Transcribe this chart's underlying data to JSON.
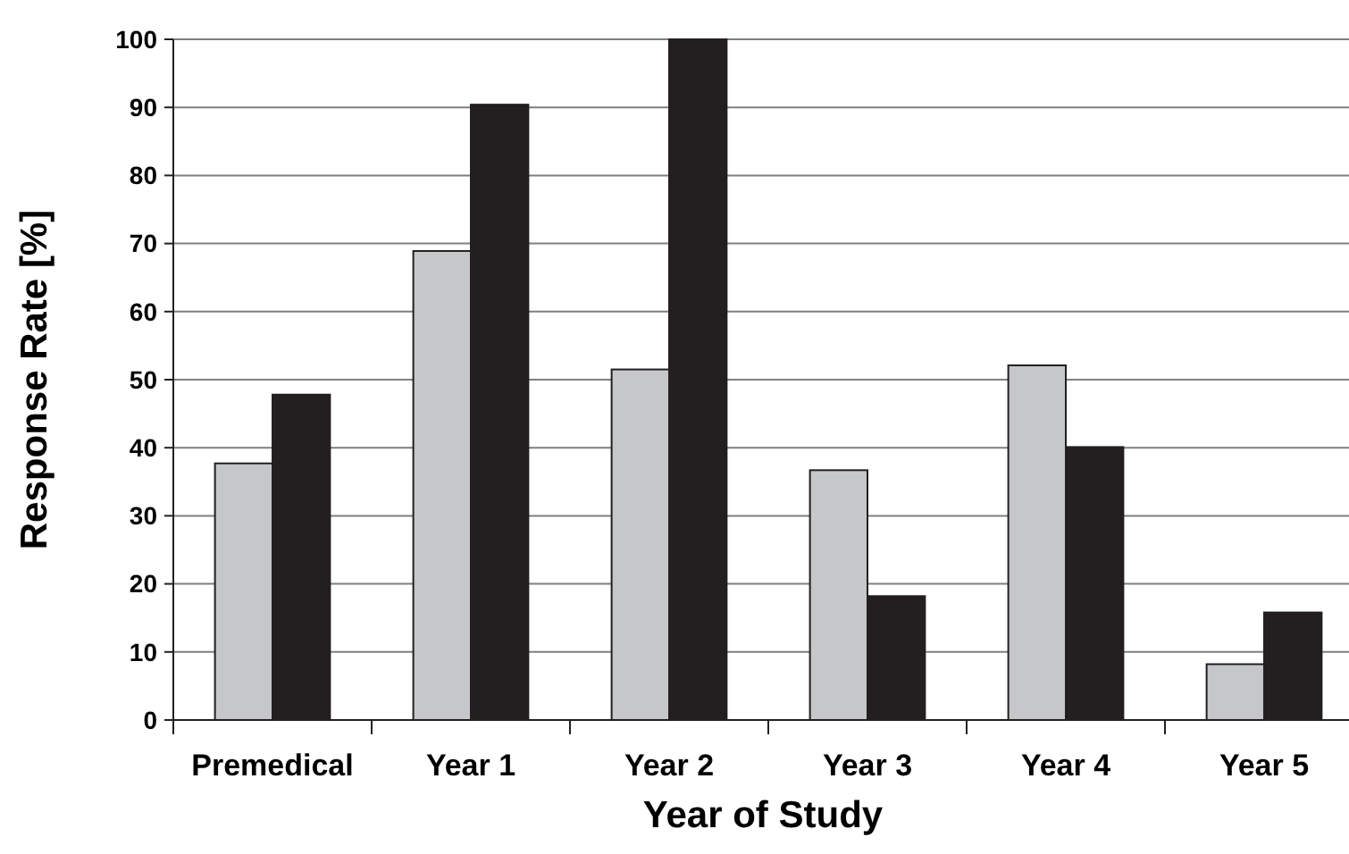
{
  "chart_data": {
    "type": "bar",
    "xlabel": "Year of Study",
    "ylabel": "Response Rate [%]",
    "categories": [
      "Premedical",
      "Year 1",
      "Year 2",
      "Year 3",
      "Year 4",
      "Year 5"
    ],
    "series": [
      {
        "color": "#c6c7c9",
        "values": [
          37.7,
          68.9,
          51.5,
          36.7,
          52.1,
          8.2
        ]
      },
      {
        "color": "#231f20",
        "values": [
          47.8,
          90.4,
          100,
          18.2,
          40.1,
          15.8
        ]
      }
    ],
    "ylim": [
      0,
      100
    ],
    "yticks": [
      0,
      10,
      20,
      30,
      40,
      50,
      60,
      70,
      80,
      90,
      100
    ],
    "grid": "y"
  }
}
